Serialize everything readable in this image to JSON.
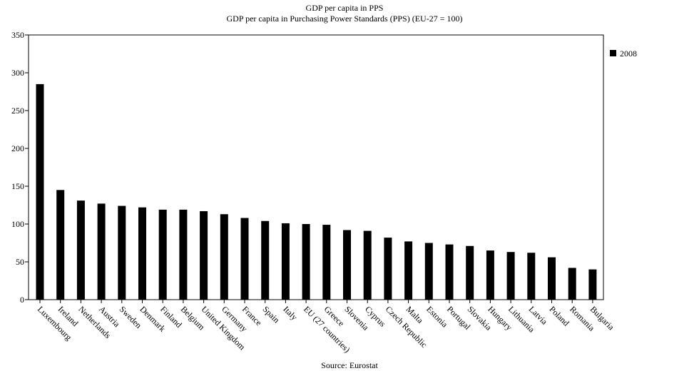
{
  "chart_data": {
    "type": "bar",
    "title": "GDP per capita in PPS",
    "subtitle": "GDP per capita in Purchasing Power Standards (PPS) (EU-27 = 100)",
    "xlabel": "",
    "ylabel": "",
    "ylim": [
      0,
      350
    ],
    "yticks": [
      0,
      50,
      100,
      150,
      200,
      250,
      300,
      350
    ],
    "grid": false,
    "legend_position": "top-right",
    "source": "Source: Eurostat",
    "categories": [
      "Luxembourg",
      "Ireland",
      "Netherlands",
      "Austria",
      "Sweden",
      "Denmark",
      "Finland",
      "Belgium",
      "United Kingdom",
      "Germany",
      "France",
      "Spain",
      "Italy",
      "EU (27 countries)",
      "Greece",
      "Slovenia",
      "Cyprus",
      "Czech Republic",
      "Malta",
      "Estonia",
      "Portugal",
      "Slovakia",
      "Hungary",
      "Lithuania",
      "Latvia",
      "Poland",
      "Romania",
      "Bulgaria"
    ],
    "series": [
      {
        "name": "2008",
        "color": "#000000",
        "values": [
          285,
          145,
          131,
          127,
          124,
          122,
          119,
          119,
          117,
          113,
          108,
          104,
          101,
          100,
          99,
          92,
          91,
          82,
          77,
          75,
          73,
          71,
          65,
          63,
          62,
          56,
          42,
          40
        ]
      }
    ]
  }
}
